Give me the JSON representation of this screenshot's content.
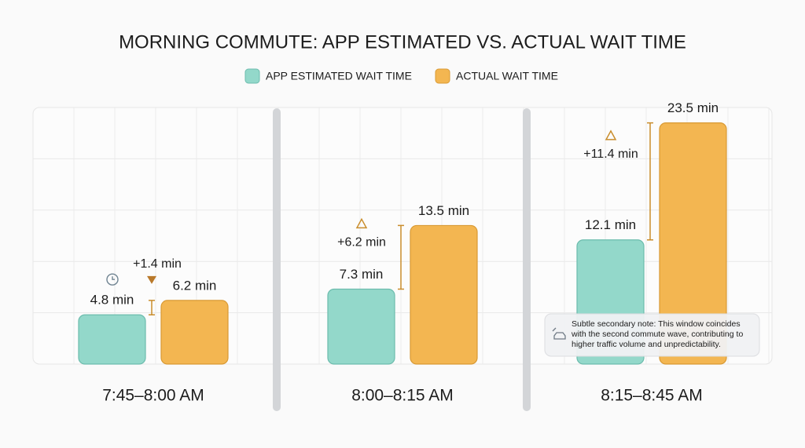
{
  "chart_data": {
    "type": "bar",
    "title": "MORNING COMMUTE: APP ESTIMATED VS. ACTUAL WAIT TIME",
    "categories": [
      "7:45–8:00 AM",
      "8:00–8:15 AM",
      "8:15–8:45 AM"
    ],
    "series": [
      {
        "name": "APP ESTIMATED WAIT TIME",
        "color": "#93d8ca",
        "values": [
          4.8,
          7.3,
          12.1
        ],
        "value_labels": [
          "4.8 min",
          "7.3 min",
          "12.1 min"
        ]
      },
      {
        "name": "ACTUAL WAIT TIME",
        "color": "#f3b651",
        "values": [
          6.2,
          13.5,
          23.5
        ],
        "value_labels": [
          "6.2 min",
          "13.5 min",
          "23.5 min"
        ]
      }
    ],
    "annotations": [
      "+1.4 min",
      "+6.2 min",
      "+11.4 min"
    ],
    "note": [
      "Subtle secondary note: This window coincides",
      "with the second commute wave, contributing to",
      "higher traffic volume and unpredictability."
    ],
    "ylim": [
      0,
      25
    ],
    "grid": true
  }
}
